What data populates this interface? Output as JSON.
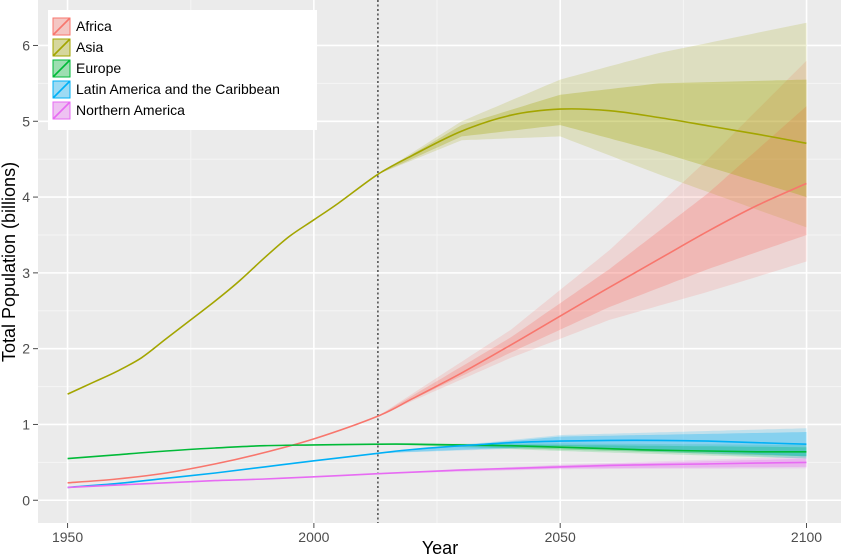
{
  "chart_data": {
    "type": "line",
    "xlabel": "Year",
    "ylabel": "Total Population (billions)",
    "xlim": [
      1944,
      2107
    ],
    "ylim": [
      -0.3,
      6.6
    ],
    "x_ticks": [
      1950,
      2000,
      2050,
      2100
    ],
    "x_tick_labels": [
      "1950",
      "2000",
      "2050",
      "2100"
    ],
    "y_ticks": [
      0,
      1,
      2,
      3,
      4,
      5,
      6
    ],
    "y_tick_labels": [
      "0",
      "1",
      "2",
      "3",
      "4",
      "5",
      "6"
    ],
    "grid": true,
    "background": "#ebebeb",
    "legend_position": "top-left",
    "reference_line": {
      "x": 2013,
      "style": "dotted"
    },
    "series": [
      {
        "name": "Africa",
        "color": "#f8766d",
        "x": [
          1950,
          1960,
          1970,
          1980,
          1990,
          2000,
          2013,
          2020,
          2030,
          2040,
          2050,
          2060,
          2070,
          2080,
          2090,
          2100
        ],
        "y": [
          0.23,
          0.28,
          0.36,
          0.48,
          0.63,
          0.81,
          1.11,
          1.34,
          1.68,
          2.05,
          2.43,
          2.81,
          3.18,
          3.55,
          3.89,
          4.18
        ],
        "inner_band": {
          "x": [
            2013,
            2040,
            2060,
            2080,
            2100
          ],
          "lower": [
            1.11,
            1.95,
            2.55,
            3.05,
            3.5
          ],
          "upper": [
            1.11,
            2.15,
            3.05,
            4.05,
            5.2
          ]
        },
        "outer_band": {
          "x": [
            2013,
            2040,
            2060,
            2080,
            2100
          ],
          "lower": [
            1.11,
            1.88,
            2.38,
            2.75,
            3.15
          ],
          "upper": [
            1.11,
            2.25,
            3.3,
            4.5,
            5.8
          ]
        }
      },
      {
        "name": "Asia",
        "color": "#a3a500",
        "x": [
          1950,
          1955,
          1960,
          1965,
          1970,
          1975,
          1980,
          1985,
          1990,
          1995,
          2000,
          2005,
          2013,
          2020,
          2030,
          2040,
          2050,
          2060,
          2070,
          2080,
          2090,
          2100
        ],
        "y": [
          1.4,
          1.55,
          1.7,
          1.88,
          2.13,
          2.38,
          2.63,
          2.9,
          3.2,
          3.48,
          3.7,
          3.92,
          4.3,
          4.55,
          4.87,
          5.08,
          5.16,
          5.14,
          5.05,
          4.94,
          4.83,
          4.71
        ],
        "inner_band": {
          "x": [
            2013,
            2030,
            2050,
            2070,
            2100
          ],
          "lower": [
            4.3,
            4.8,
            4.95,
            4.6,
            4.0
          ],
          "upper": [
            4.3,
            4.95,
            5.35,
            5.5,
            5.55
          ]
        },
        "outer_band": {
          "x": [
            2013,
            2030,
            2050,
            2070,
            2100
          ],
          "lower": [
            4.3,
            4.75,
            4.8,
            4.3,
            3.6
          ],
          "upper": [
            4.3,
            5.0,
            5.55,
            5.9,
            6.3
          ]
        }
      },
      {
        "name": "Europe",
        "color": "#00ba38",
        "x": [
          1950,
          1960,
          1970,
          1980,
          1990,
          2000,
          2013,
          2020,
          2030,
          2040,
          2050,
          2060,
          2070,
          2080,
          2090,
          2100
        ],
        "y": [
          0.55,
          0.6,
          0.65,
          0.69,
          0.72,
          0.73,
          0.74,
          0.74,
          0.73,
          0.72,
          0.7,
          0.68,
          0.66,
          0.65,
          0.64,
          0.64
        ],
        "inner_band": {
          "x": [
            2013,
            2050,
            2100
          ],
          "lower": [
            0.74,
            0.67,
            0.58
          ],
          "upper": [
            0.74,
            0.73,
            0.7
          ]
        },
        "outer_band": {
          "x": [
            2013,
            2050,
            2100
          ],
          "lower": [
            0.74,
            0.65,
            0.55
          ],
          "upper": [
            0.74,
            0.75,
            0.73
          ]
        }
      },
      {
        "name": "Latin America and the Caribbean",
        "color": "#00b0f6",
        "x": [
          1950,
          1960,
          1970,
          1980,
          1990,
          2000,
          2013,
          2020,
          2030,
          2040,
          2050,
          2060,
          2070,
          2080,
          2090,
          2100
        ],
        "y": [
          0.17,
          0.22,
          0.29,
          0.36,
          0.44,
          0.52,
          0.62,
          0.67,
          0.72,
          0.76,
          0.78,
          0.79,
          0.79,
          0.78,
          0.76,
          0.74
        ],
        "inner_band": {
          "x": [
            2013,
            2050,
            2100
          ],
          "lower": [
            0.62,
            0.72,
            0.58
          ],
          "upper": [
            0.62,
            0.84,
            0.9
          ]
        },
        "outer_band": {
          "x": [
            2013,
            2050,
            2100
          ],
          "lower": [
            0.62,
            0.7,
            0.55
          ],
          "upper": [
            0.62,
            0.86,
            0.95
          ]
        }
      },
      {
        "name": "Northern America",
        "color": "#e76bf3",
        "x": [
          1950,
          1960,
          1970,
          1980,
          1990,
          2000,
          2013,
          2020,
          2030,
          2040,
          2050,
          2060,
          2070,
          2080,
          2090,
          2100
        ],
        "y": [
          0.17,
          0.2,
          0.23,
          0.26,
          0.28,
          0.31,
          0.35,
          0.37,
          0.4,
          0.42,
          0.44,
          0.46,
          0.47,
          0.48,
          0.49,
          0.5
        ],
        "inner_band": {
          "x": [
            2013,
            2050,
            2100
          ],
          "lower": [
            0.35,
            0.42,
            0.44
          ],
          "upper": [
            0.35,
            0.46,
            0.55
          ]
        },
        "outer_band": {
          "x": [
            2013,
            2050,
            2100
          ],
          "lower": [
            0.35,
            0.41,
            0.42
          ],
          "upper": [
            0.35,
            0.47,
            0.58
          ]
        }
      }
    ]
  }
}
